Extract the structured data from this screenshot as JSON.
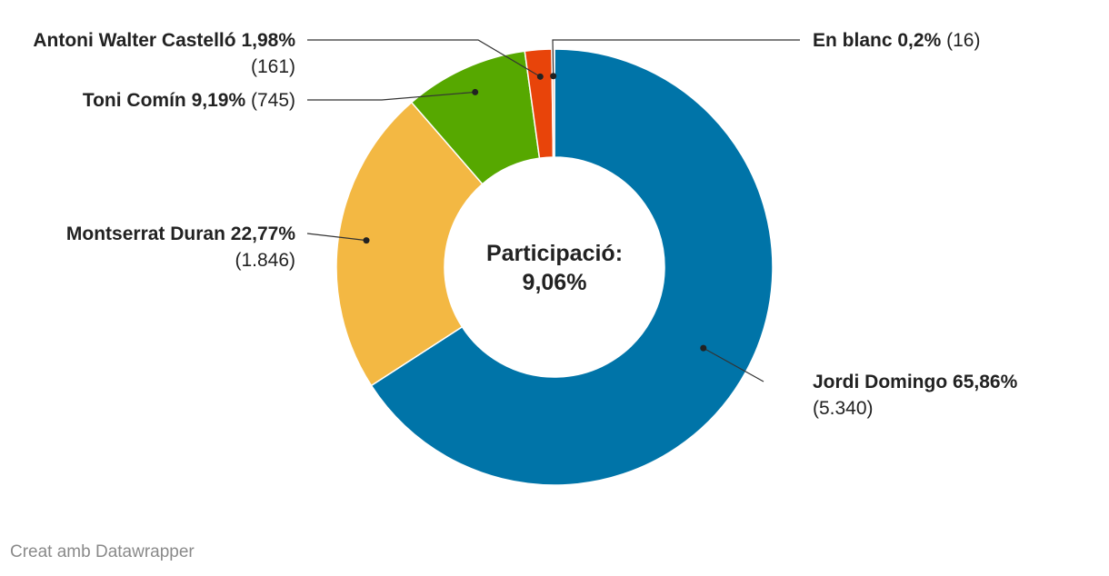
{
  "chart_data": {
    "type": "pie",
    "variant": "donut",
    "center_text": [
      "Participació:",
      "9,06%"
    ],
    "slices": [
      {
        "name": "Jordi Domingo",
        "percent": 65.86,
        "percent_label": "65,86%",
        "count": 5340,
        "count_label": "(5.340)",
        "color": "#0074a8"
      },
      {
        "name": "Montserrat Duran",
        "percent": 22.77,
        "percent_label": "22,77%",
        "count": 1846,
        "count_label": "(1.846)",
        "color": "#f3b843"
      },
      {
        "name": "Toni Comín",
        "percent": 9.19,
        "percent_label": "9,19%",
        "count": 745,
        "count_label": "(745)",
        "color": "#56a800"
      },
      {
        "name": "Antoni Walter Castelló",
        "percent": 1.98,
        "percent_label": "1,98%",
        "count": 161,
        "count_label": "(161)",
        "color": "#e8440a"
      },
      {
        "name": "En blanc",
        "percent": 0.2,
        "percent_label": "0,2%",
        "count": 16,
        "count_label": "(16)",
        "color": "#f2c1a8"
      }
    ]
  },
  "footer": "Creat amb Datawrapper"
}
